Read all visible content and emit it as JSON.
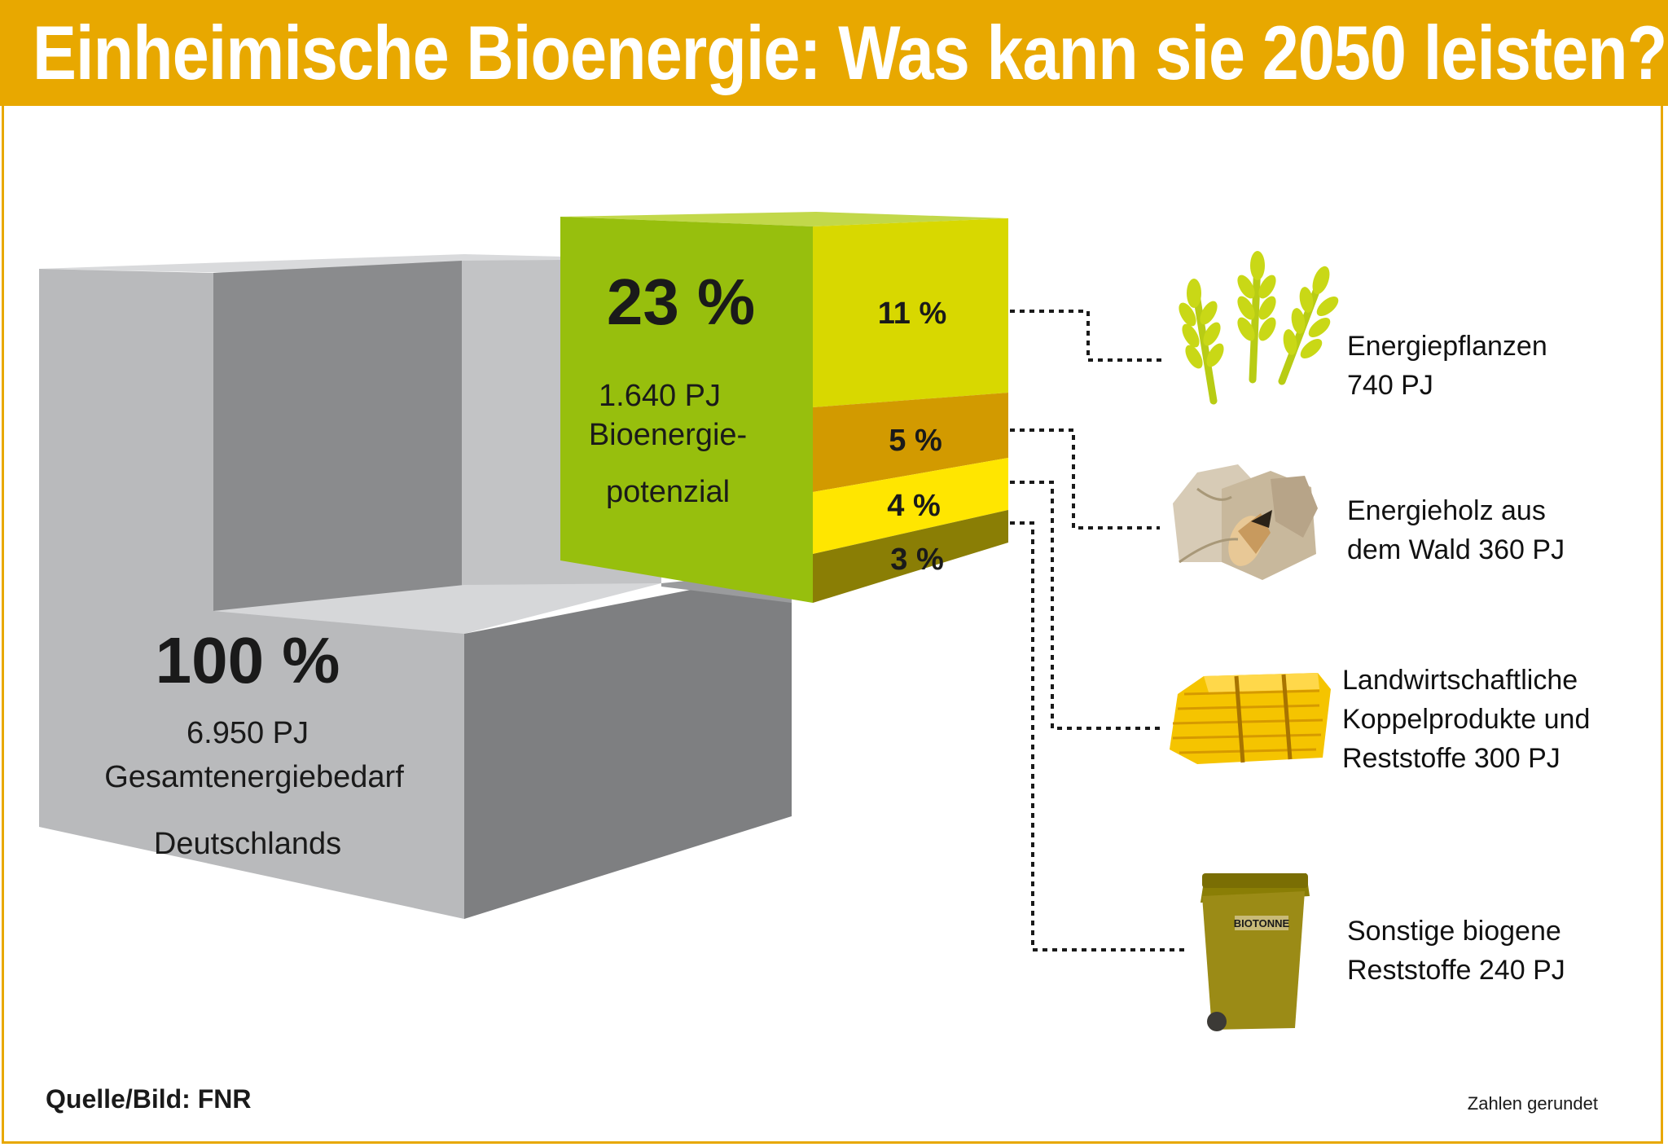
{
  "title": "Einheimische Bioenergie: Was kann sie 2050 leisten?",
  "colors": {
    "header": "#e8a800",
    "total_block": "#b9babc",
    "potential_block": "#97bf0d",
    "energiepflanzen": "#d8d800",
    "energieholz": "#d29a00",
    "koppelprodukte": "#ffe600",
    "sonstige": "#8a7e05"
  },
  "chart_data": {
    "type": "3d-block",
    "unit": "PJ",
    "total": {
      "percent_label": "100 %",
      "value_label": "6.950 PJ",
      "label_lines": [
        "Gesamtenergiebedarf",
        "Deutschlands"
      ],
      "value": 6950
    },
    "potential": {
      "percent_label": "23 %",
      "value_label": "1.640 PJ",
      "label_lines": [
        "Bioenergie-",
        "potenzial"
      ],
      "value": 1640
    },
    "segments": [
      {
        "percent": 11,
        "percent_label": "11 %",
        "value": 740,
        "label_lines": [
          "Energiepflanzen",
          "740 PJ"
        ],
        "icon": "wheat-icon"
      },
      {
        "percent": 5,
        "percent_label": "5 %",
        "value": 360,
        "label_lines": [
          "Energieholz aus",
          "dem Wald 360 PJ"
        ],
        "icon": "firewood-icon"
      },
      {
        "percent": 4,
        "percent_label": "4 %",
        "value": 300,
        "label_lines": [
          "Landwirtschaftliche",
          "Koppelprodukte und",
          "Reststoffe 300 PJ"
        ],
        "icon": "straw-bale-icon"
      },
      {
        "percent": 3,
        "percent_label": "3 %",
        "value": 240,
        "label_lines": [
          "Sonstige biogene",
          "Reststoffe 240 PJ"
        ],
        "icon": "biotonne-icon"
      }
    ]
  },
  "bin_label": "BIOTONNE",
  "source": "Quelle/Bild: FNR",
  "note": "Zahlen gerundet"
}
